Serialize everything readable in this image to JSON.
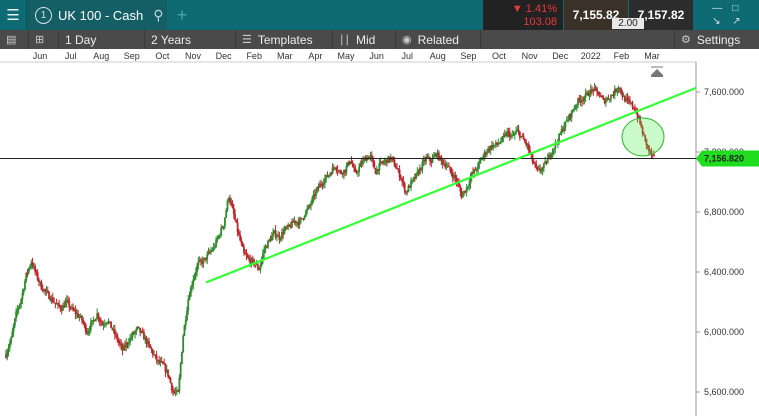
{
  "header": {
    "menu_icon": "hamburger-icon",
    "instrument_number": "1",
    "instrument_name": "UK 100 - Cash",
    "search_icon": "search-icon",
    "add_tab_icon": "plus-icon",
    "change_pct": "▼ 1.41%",
    "change_abs": "103.08",
    "sell_price": "7,155.82",
    "buy_price": "7,157.82",
    "spread": "2.00",
    "window_icons": [
      "minimize-icon",
      "restore-icon",
      "expand-icon",
      "collapse-icon"
    ]
  },
  "toolbar": {
    "list_icon": "list-icon",
    "layout_icon": "grid-layout-icon",
    "interval": "1 Day",
    "range": "2 Years",
    "templates_label": "Templates",
    "price_type_label": "Mid",
    "related_label": "Related",
    "settings_label": "Settings"
  },
  "colors": {
    "header_bg": "#0f6b73",
    "toolbar_bg": "#4a4a4a",
    "up_candle": "#2e8b2e",
    "down_candle": "#c0232b",
    "trendline": "#33ff33",
    "price_tag": "#1fdc1f"
  },
  "chart_data": {
    "type": "candlestick",
    "x_ticks": [
      "Jun",
      "Jul",
      "Aug",
      "Sep",
      "Oct",
      "Nov",
      "Dec",
      "Feb",
      "Mar",
      "Apr",
      "May",
      "Jun",
      "Jul",
      "Aug",
      "Sep",
      "Oct",
      "Nov",
      "Dec",
      "2022",
      "Feb",
      "Mar"
    ],
    "y_ticks": [
      "7,600.000",
      "7,200.000",
      "6,800.000",
      "6,400.000",
      "6,000.000",
      "5,600.000"
    ],
    "y_tick_values": [
      7600,
      7200,
      6800,
      6400,
      6000,
      5600
    ],
    "ylim": [
      5440,
      7800
    ],
    "current_price_label": "7,156.820",
    "current_price": 7156.82,
    "grid": false,
    "closes": [
      5850,
      5950,
      6120,
      6220,
      6380,
      6470,
      6380,
      6300,
      6260,
      6220,
      6180,
      6160,
      6200,
      6150,
      6120,
      6080,
      6000,
      6060,
      6120,
      6050,
      6080,
      6020,
      5950,
      5880,
      5930,
      5980,
      6020,
      5980,
      5920,
      5860,
      5800,
      5780,
      5720,
      5600,
      5590,
      5980,
      6220,
      6360,
      6460,
      6470,
      6520,
      6560,
      6640,
      6720,
      6910,
      6780,
      6640,
      6520,
      6480,
      6460,
      6420,
      6550,
      6610,
      6660,
      6630,
      6680,
      6700,
      6740,
      6730,
      6790,
      6840,
      6920,
      6980,
      7020,
      7060,
      7110,
      7060,
      7080,
      7150,
      7050,
      7110,
      7160,
      7170,
      7070,
      7120,
      7140,
      7160,
      7100,
      7030,
      6930,
      6990,
      7040,
      7100,
      7160,
      7140,
      7190,
      7140,
      7110,
      7060,
      7010,
      6910,
      6960,
      7050,
      7090,
      7160,
      7210,
      7240,
      7250,
      7280,
      7330,
      7300,
      7340,
      7290,
      7240,
      7140,
      7070,
      7090,
      7150,
      7220,
      7280,
      7360,
      7420,
      7480,
      7540,
      7560,
      7590,
      7620,
      7590,
      7540,
      7560,
      7590,
      7640,
      7560,
      7530,
      7500,
      7420,
      7300,
      7210,
      7156
    ]
  }
}
